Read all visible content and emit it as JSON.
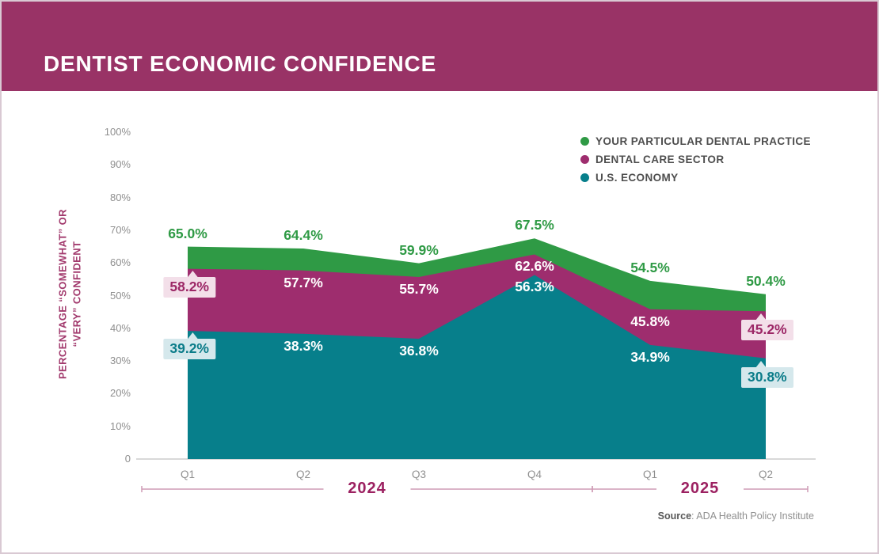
{
  "header": {
    "title": "DENTIST ECONOMIC CONFIDENCE"
  },
  "chart_data": {
    "type": "area",
    "title": "DENTIST ECONOMIC CONFIDENCE",
    "ylabel_lines": [
      "PERCENTAGE “SOMEWHAT” OR",
      "“VERY” CONFIDENT"
    ],
    "categories": [
      "Q1",
      "Q2",
      "Q3",
      "Q4",
      "Q1",
      "Q2"
    ],
    "year_groups": [
      {
        "label": "2024",
        "from": 0,
        "to": 3
      },
      {
        "label": "2025",
        "from": 4,
        "to": 5
      }
    ],
    "y_ticks": [
      "100%",
      "90%",
      "80%",
      "70%",
      "60%",
      "50%",
      "40%",
      "30%",
      "20%",
      "10%",
      "0"
    ],
    "ylim": [
      0,
      100
    ],
    "grid": false,
    "legend_position": "top-right",
    "series": [
      {
        "name": "YOUR PARTICULAR DENTAL PRACTICE",
        "color": "#2f9a45",
        "values": [
          65.0,
          64.4,
          59.9,
          67.5,
          54.5,
          50.4
        ],
        "labels": [
          "65.0%",
          "64.4%",
          "59.9%",
          "67.5%",
          "54.5%",
          "50.4%"
        ],
        "label_styles": [
          "above",
          "above",
          "above",
          "above",
          "above",
          "above"
        ]
      },
      {
        "name": "DENTAL CARE SECTOR",
        "color": "#9e2d6e",
        "values": [
          58.2,
          57.7,
          55.7,
          62.6,
          45.8,
          45.2
        ],
        "labels": [
          "58.2%",
          "57.7%",
          "55.7%",
          "62.6%",
          "45.8%",
          "45.2%"
        ],
        "label_styles": [
          "callout-pink-left",
          "inside",
          "inside",
          "inside",
          "inside",
          "callout-pink-right"
        ]
      },
      {
        "name": "U.S. ECONOMY",
        "color": "#077f8b",
        "values": [
          39.2,
          38.3,
          36.8,
          56.3,
          34.9,
          30.8
        ],
        "labels": [
          "39.2%",
          "38.3%",
          "36.8%",
          "56.3%",
          "34.9%",
          "30.8%"
        ],
        "label_styles": [
          "callout-blue-left",
          "inside",
          "inside",
          "inside",
          "inside",
          "callout-blue-right"
        ]
      }
    ],
    "source": {
      "prefix": "Source",
      "text": ": ADA Health Policy Institute"
    }
  },
  "colors": {
    "banner": "#993366",
    "baseline": "#d8d8d8",
    "year_bracket_line": "#cf9cb5",
    "axis_text": "#8f8f8f",
    "pink_callout_bg": "#f3dfe9",
    "blue_callout_bg": "#d5e8ec"
  }
}
